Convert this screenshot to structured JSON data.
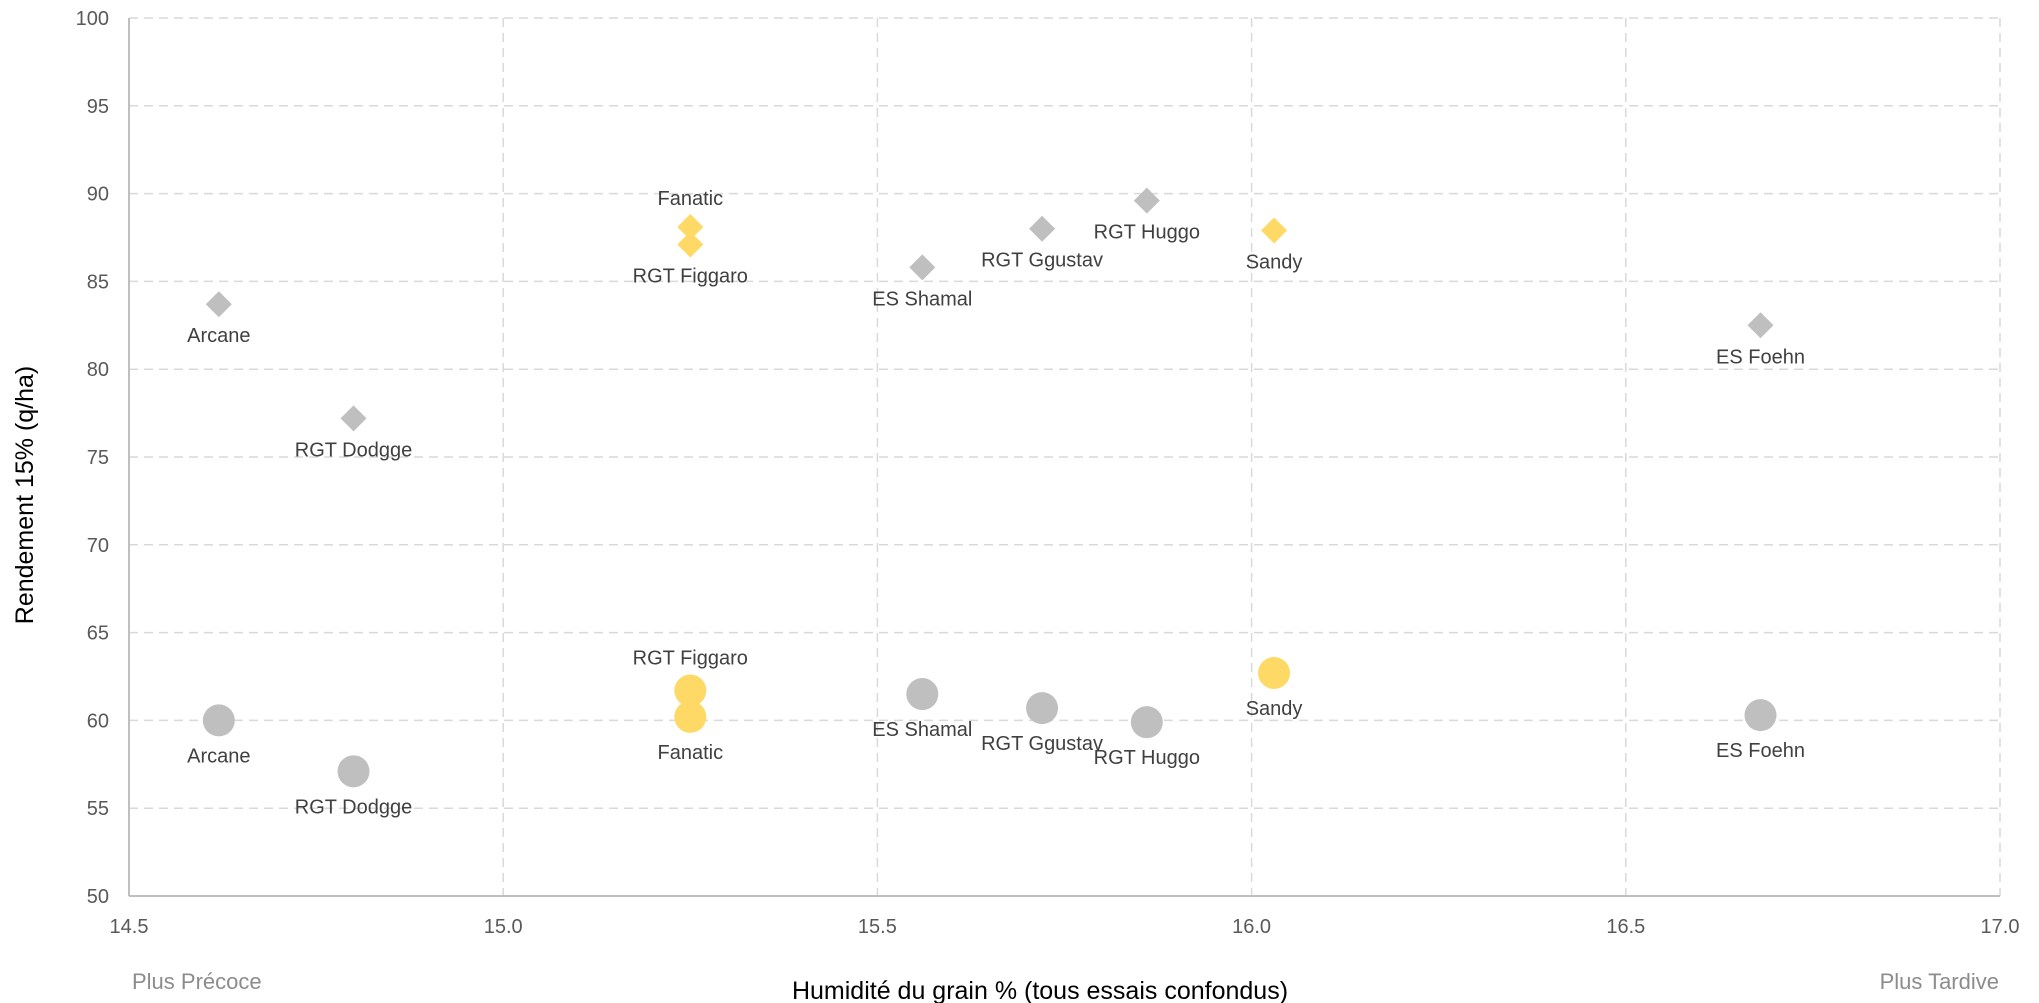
{
  "chart_data": {
    "type": "scatter",
    "title": "",
    "xlabel": "Humidité du grain % (tous essais confondus)",
    "ylabel": "Rendement 15% (q/ha)",
    "xlim": [
      14.5,
      17.0
    ],
    "ylim": [
      50,
      100
    ],
    "xticks": [
      "14.5",
      "15.0",
      "15.5",
      "16.0",
      "16.5",
      "17.0"
    ],
    "yticks": [
      "50",
      "55",
      "60",
      "65",
      "70",
      "75",
      "80",
      "85",
      "90",
      "95",
      "100"
    ],
    "grid": true,
    "corner_labels": {
      "left": "Plus Précoce",
      "right": "Plus Tardive"
    },
    "colors": {
      "highlight": "#ffd966",
      "default": "#bfbfbf",
      "grid": "#d9d9d9",
      "axis": "#bfbfbf"
    },
    "series": [
      {
        "marker": "diamond",
        "points": [
          {
            "label": "Arcane",
            "x": 14.62,
            "y": 83.7,
            "highlight": false,
            "label_pos": "below"
          },
          {
            "label": "RGT Dodgge",
            "x": 14.8,
            "y": 77.2,
            "highlight": false,
            "label_pos": "below"
          },
          {
            "label": "Fanatic",
            "x": 15.25,
            "y": 88.1,
            "highlight": true,
            "label_pos": "above"
          },
          {
            "label": "RGT Figgaro",
            "x": 15.25,
            "y": 87.1,
            "highlight": true,
            "label_pos": "below"
          },
          {
            "label": "ES Shamal",
            "x": 15.56,
            "y": 85.8,
            "highlight": false,
            "label_pos": "below"
          },
          {
            "label": "RGT Ggustav",
            "x": 15.72,
            "y": 88.0,
            "highlight": false,
            "label_pos": "below"
          },
          {
            "label": "RGT Huggo",
            "x": 15.86,
            "y": 89.6,
            "highlight": false,
            "label_pos": "below"
          },
          {
            "label": "Sandy",
            "x": 16.03,
            "y": 87.9,
            "highlight": true,
            "label_pos": "below"
          },
          {
            "label": "ES Foehn",
            "x": 16.68,
            "y": 82.5,
            "highlight": false,
            "label_pos": "below"
          }
        ]
      },
      {
        "marker": "circle",
        "points": [
          {
            "label": "Arcane",
            "x": 14.62,
            "y": 60.0,
            "highlight": false,
            "label_pos": "below"
          },
          {
            "label": "RGT Dodgge",
            "x": 14.8,
            "y": 57.1,
            "highlight": false,
            "label_pos": "below"
          },
          {
            "label": "RGT Figgaro",
            "x": 15.25,
            "y": 61.7,
            "highlight": true,
            "label_pos": "above"
          },
          {
            "label": "Fanatic",
            "x": 15.25,
            "y": 60.2,
            "highlight": true,
            "label_pos": "below"
          },
          {
            "label": "ES Shamal",
            "x": 15.56,
            "y": 61.5,
            "highlight": false,
            "label_pos": "below"
          },
          {
            "label": "RGT Ggustav",
            "x": 15.72,
            "y": 60.7,
            "highlight": false,
            "label_pos": "below"
          },
          {
            "label": "RGT Huggo",
            "x": 15.86,
            "y": 59.9,
            "highlight": false,
            "label_pos": "below"
          },
          {
            "label": "Sandy",
            "x": 16.03,
            "y": 62.7,
            "highlight": true,
            "label_pos": "below"
          },
          {
            "label": "ES Foehn",
            "x": 16.68,
            "y": 60.3,
            "highlight": false,
            "label_pos": "below"
          }
        ]
      }
    ]
  }
}
